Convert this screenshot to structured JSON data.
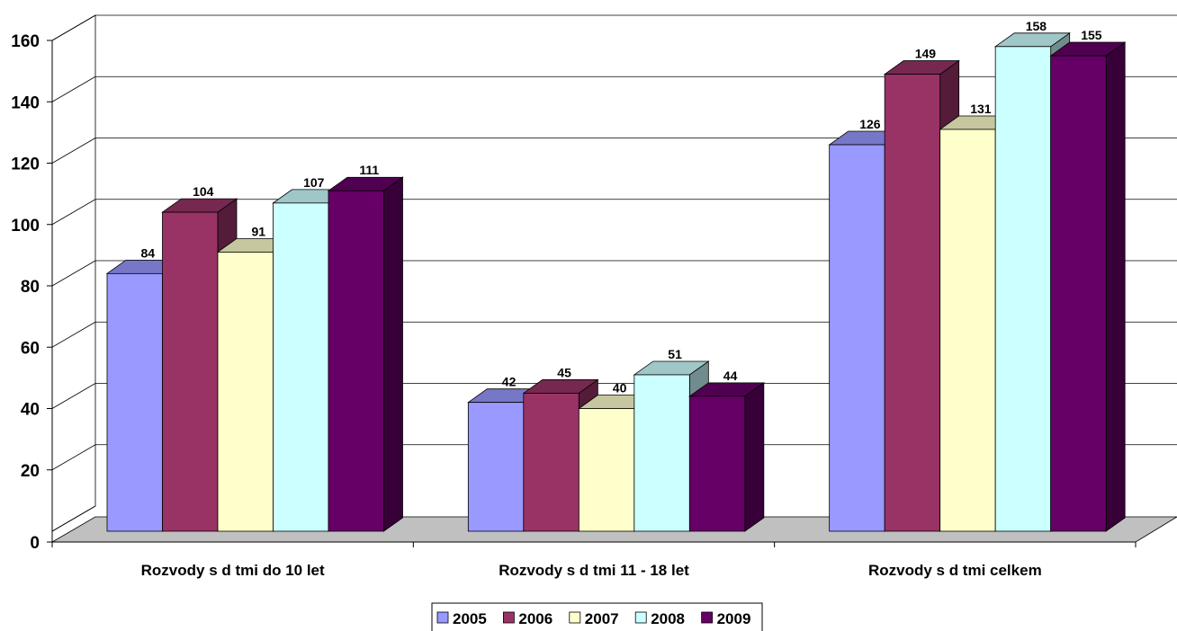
{
  "chart_data": {
    "type": "bar",
    "style": "3d-clustered-column",
    "categories": [
      "Rozvody s d  tmi do 10 let",
      "Rozvody s d  tmi 11 - 18 let",
      "Rozvody s d  tmi celkem"
    ],
    "series": [
      {
        "name": "2005",
        "values": [
          84,
          42,
          126
        ],
        "color": "#9999ff"
      },
      {
        "name": "2006",
        "values": [
          104,
          45,
          149
        ],
        "color": "#993366"
      },
      {
        "name": "2007",
        "values": [
          91,
          40,
          131
        ],
        "color": "#ffffcc"
      },
      {
        "name": "2008",
        "values": [
          107,
          51,
          158
        ],
        "color": "#ccffff"
      },
      {
        "name": "2009",
        "values": [
          111,
          44,
          155
        ],
        "color": "#660066"
      }
    ],
    "ylim": [
      0,
      160
    ],
    "yticks": [
      "0",
      "20",
      "40",
      "60",
      "80",
      "100",
      "120",
      "140",
      "160"
    ],
    "grid": true,
    "legend": "bottom",
    "floor_color": "#c0c0c0"
  }
}
